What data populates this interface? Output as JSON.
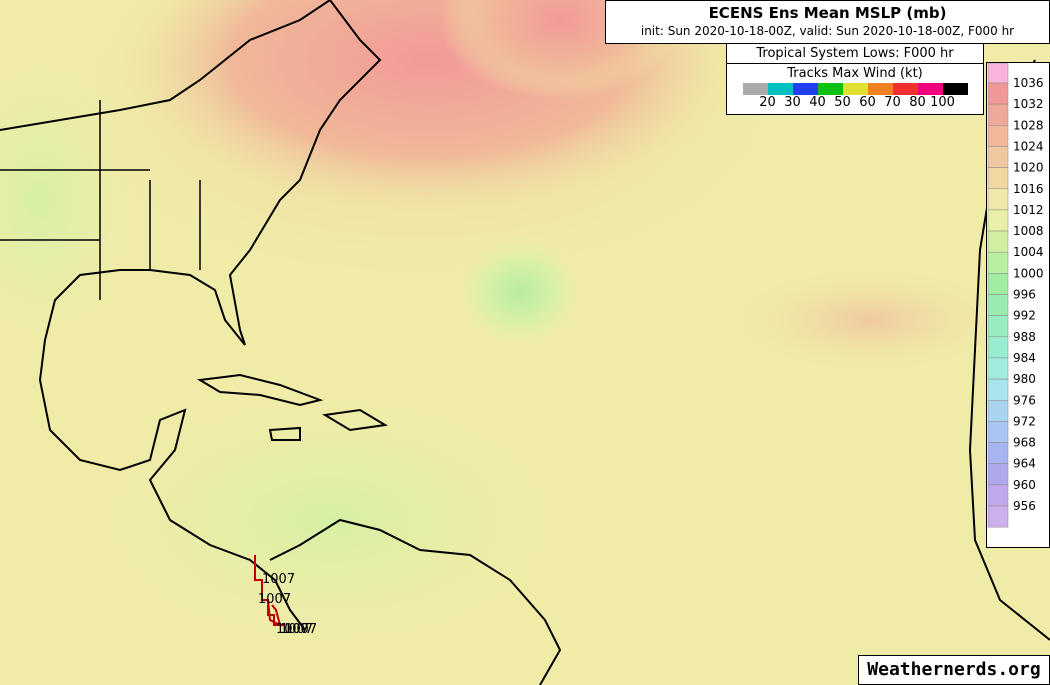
{
  "header": {
    "title": "ECENS Ens Mean MSLP (mb)",
    "subtitle": "init: Sun 2020-10-18-00Z, valid: Sun 2020-10-18-00Z, F000 hr"
  },
  "legend": {
    "title": "Tropical System Lows: F000 hr",
    "subtitle": "Tracks Max Wind (kt)",
    "colors": [
      "#aaaaaa",
      "#00c0c0",
      "#2040f0",
      "#10c010",
      "#e0e030",
      "#f08020",
      "#f03030",
      "#f00080",
      "#000000"
    ],
    "labels": [
      "20",
      "30",
      "40",
      "50",
      "60",
      "70",
      "80",
      "100"
    ]
  },
  "colorbar": {
    "labels": [
      "1036",
      "1032",
      "1028",
      "1024",
      "1020",
      "1016",
      "1012",
      "1008",
      "1004",
      "1000",
      "996",
      "992",
      "988",
      "984",
      "980",
      "976",
      "972",
      "968",
      "964",
      "960",
      "956"
    ],
    "colors": [
      "#f8b4dc",
      "#f09898",
      "#f0a898",
      "#f0b898",
      "#f0c8a0",
      "#f0d8a0",
      "#f0e8a8",
      "#e8f0a8",
      "#d0f0a0",
      "#b8f0a0",
      "#a0eca0",
      "#98ecb0",
      "#98ecc0",
      "#98ecd0",
      "#a0ece0",
      "#a8e4f0",
      "#a8d4f0",
      "#a8c4f0",
      "#a8b4f0",
      "#b0a8ec",
      "#c0a8ec",
      "#ccb0ec"
    ]
  },
  "track_labels": [
    "1007",
    "1007",
    "1007",
    "1007",
    "1007"
  ],
  "watermark": "Weathernerds.org"
}
